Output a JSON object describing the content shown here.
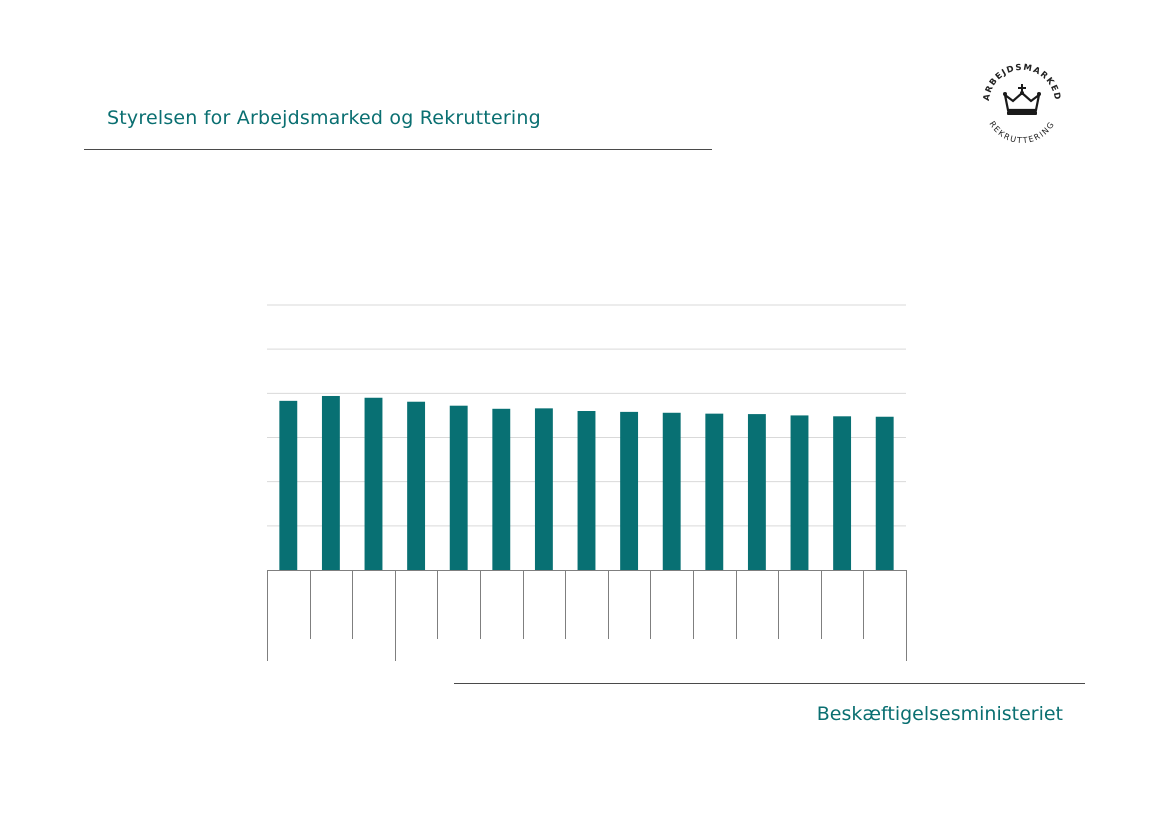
{
  "header": {
    "title": "Styrelsen for Arbejdsmarked og Rekruttering"
  },
  "logo": {
    "top_text": "ARBEJDSMARKED",
    "bottom_text": "REKRUTTERING",
    "icon": "crown-icon"
  },
  "footer": {
    "title": "Beskæftigelsesministeriet"
  },
  "colors": {
    "accent": "#0a6f71",
    "bar": "#087073",
    "grid": "#d9d9d9",
    "axis": "#7f7f7f"
  },
  "chart_data": {
    "type": "bar",
    "categories": [
      "",
      "",
      "",
      "",
      "",
      "",
      "",
      "",
      "",
      "",
      "",
      "",
      "",
      "",
      ""
    ],
    "values": [
      3.83,
      3.94,
      3.9,
      3.81,
      3.72,
      3.65,
      3.66,
      3.6,
      3.58,
      3.56,
      3.54,
      3.53,
      3.5,
      3.48,
      3.47
    ],
    "ylim": [
      0,
      6
    ],
    "yticks": [
      0,
      1,
      2,
      3,
      4,
      5,
      6
    ],
    "grid": true,
    "group_boundaries_after": [
      3
    ],
    "title": "",
    "xlabel": "",
    "ylabel": ""
  }
}
